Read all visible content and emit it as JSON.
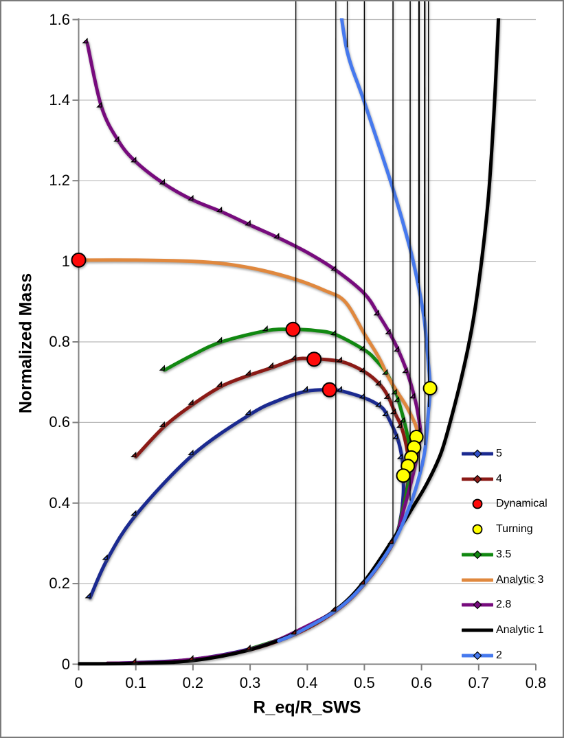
{
  "figure": {
    "background": "#FFFFFF",
    "border_color": "#7A7A7A"
  },
  "chart_data": {
    "type": "line",
    "title": "",
    "xlabel": "R_eq/R_SWS",
    "ylabel": "Normalized Mass",
    "xlim": [
      0,
      0.8
    ],
    "ylim": [
      0,
      1.6
    ],
    "xticks": [
      "0",
      "0.1",
      "0.2",
      "0.3",
      "0.4",
      "0.5",
      "0.6",
      "0.7",
      "0.8"
    ],
    "yticks": [
      "0",
      "0.2",
      "0.4",
      "0.6",
      "0.8",
      "1",
      "1.2",
      "1.4",
      "1.6"
    ],
    "grid": "horizontal",
    "legend_position": "inside-right",
    "colors": {
      "grid": "#B7B7B7",
      "axis": "#808080",
      "text": "#000000"
    },
    "series": [
      {
        "name": "5",
        "kind": "line",
        "color": "#1B2A90",
        "marker": "diamond",
        "marker_fill": "#3050C8",
        "marker_size": 12,
        "line_points": [
          [
            0.05,
            0.002
          ],
          [
            0.1,
            0.004
          ],
          [
            0.2,
            0.012
          ],
          [
            0.3,
            0.038
          ],
          [
            0.38,
            0.076
          ],
          [
            0.45,
            0.133
          ],
          [
            0.5,
            0.2
          ],
          [
            0.55,
            0.3
          ],
          [
            0.563,
            0.36
          ],
          [
            0.568,
            0.42
          ],
          [
            0.568,
            0.467
          ],
          [
            0.566,
            0.51
          ],
          [
            0.558,
            0.56
          ],
          [
            0.54,
            0.617
          ],
          [
            0.528,
            0.64
          ],
          [
            0.5,
            0.661
          ],
          [
            0.46,
            0.678
          ],
          [
            0.44,
            0.681
          ],
          [
            0.4,
            0.678
          ],
          [
            0.35,
            0.655
          ],
          [
            0.3,
            0.62
          ],
          [
            0.2,
            0.52
          ],
          [
            0.1,
            0.37
          ],
          [
            0.05,
            0.26
          ],
          [
            0.02,
            0.165
          ]
        ],
        "marker_points": [
          [
            0.38,
            0.076
          ],
          [
            0.45,
            0.133
          ],
          [
            0.5,
            0.2
          ],
          [
            0.55,
            0.3
          ],
          [
            0.568,
            0.467
          ],
          [
            0.566,
            0.51
          ],
          [
            0.558,
            0.56
          ],
          [
            0.54,
            0.617
          ],
          [
            0.528,
            0.64
          ],
          [
            0.5,
            0.661
          ],
          [
            0.46,
            0.678
          ],
          [
            0.4,
            0.678
          ],
          [
            0.3,
            0.62
          ],
          [
            0.2,
            0.52
          ],
          [
            0.1,
            0.37
          ],
          [
            0.05,
            0.26
          ],
          [
            0.02,
            0.165
          ]
        ]
      },
      {
        "name": "4",
        "kind": "line",
        "color": "#8B1A16",
        "marker": "diamond",
        "marker_fill": "#8B1A16",
        "marker_size": 12,
        "line_points": [
          [
            0.05,
            0.002
          ],
          [
            0.1,
            0.003
          ],
          [
            0.2,
            0.01
          ],
          [
            0.3,
            0.036
          ],
          [
            0.38,
            0.075
          ],
          [
            0.45,
            0.132
          ],
          [
            0.5,
            0.199
          ],
          [
            0.55,
            0.3
          ],
          [
            0.568,
            0.39
          ],
          [
            0.576,
            0.45
          ],
          [
            0.577,
            0.492
          ],
          [
            0.575,
            0.53
          ],
          [
            0.565,
            0.588
          ],
          [
            0.554,
            0.622
          ],
          [
            0.543,
            0.66
          ],
          [
            0.528,
            0.693
          ],
          [
            0.5,
            0.726
          ],
          [
            0.46,
            0.751
          ],
          [
            0.41,
            0.758
          ],
          [
            0.38,
            0.757
          ],
          [
            0.34,
            0.737
          ],
          [
            0.3,
            0.718
          ],
          [
            0.25,
            0.69
          ],
          [
            0.2,
            0.645
          ],
          [
            0.15,
            0.59
          ],
          [
            0.1,
            0.515
          ]
        ],
        "marker_points": [
          [
            0.1,
            0.003
          ],
          [
            0.2,
            0.01
          ],
          [
            0.3,
            0.036
          ],
          [
            0.38,
            0.075
          ],
          [
            0.45,
            0.132
          ],
          [
            0.5,
            0.199
          ],
          [
            0.55,
            0.3
          ],
          [
            0.577,
            0.492
          ],
          [
            0.565,
            0.588
          ],
          [
            0.554,
            0.622
          ],
          [
            0.543,
            0.66
          ],
          [
            0.528,
            0.693
          ],
          [
            0.5,
            0.726
          ],
          [
            0.46,
            0.751
          ],
          [
            0.38,
            0.757
          ],
          [
            0.34,
            0.737
          ],
          [
            0.3,
            0.718
          ],
          [
            0.25,
            0.69
          ],
          [
            0.2,
            0.645
          ],
          [
            0.15,
            0.59
          ],
          [
            0.1,
            0.515
          ]
        ]
      },
      {
        "name": "Dynamical",
        "kind": "scatter",
        "color": "#FF0A0A",
        "marker": "circle",
        "marker_fill": "#FF0A0A",
        "marker_size": 20,
        "points": [
          [
            0,
            1.003
          ],
          [
            0.375,
            0.831
          ],
          [
            0.412,
            0.757
          ],
          [
            0.439,
            0.681
          ]
        ]
      },
      {
        "name": "Turning",
        "kind": "scatter",
        "color": "#FFFF00",
        "marker": "circle",
        "marker_fill": "#FFFF00",
        "marker_size": 19,
        "points": [
          [
            0.615,
            0.685
          ],
          [
            0.591,
            0.564
          ],
          [
            0.587,
            0.538
          ],
          [
            0.582,
            0.513
          ],
          [
            0.576,
            0.492
          ],
          [
            0.568,
            0.468
          ]
        ]
      },
      {
        "name": "3.5",
        "kind": "line",
        "color": "#118811",
        "marker": "diamond",
        "marker_fill": "#118811",
        "marker_size": 12,
        "line_points": [
          [
            0.3,
            0.038
          ],
          [
            0.38,
            0.077
          ],
          [
            0.45,
            0.134
          ],
          [
            0.5,
            0.201
          ],
          [
            0.55,
            0.302
          ],
          [
            0.57,
            0.4
          ],
          [
            0.578,
            0.46
          ],
          [
            0.582,
            0.513
          ],
          [
            0.578,
            0.55
          ],
          [
            0.57,
            0.601
          ],
          [
            0.56,
            0.652
          ],
          [
            0.556,
            0.671
          ],
          [
            0.54,
            0.72
          ],
          [
            0.52,
            0.755
          ],
          [
            0.5,
            0.78
          ],
          [
            0.45,
            0.818
          ],
          [
            0.415,
            0.828
          ],
          [
            0.375,
            0.831
          ],
          [
            0.33,
            0.828
          ],
          [
            0.25,
            0.8
          ],
          [
            0.2,
            0.768
          ],
          [
            0.15,
            0.73
          ]
        ],
        "marker_points": [
          [
            0.582,
            0.513
          ],
          [
            0.57,
            0.601
          ],
          [
            0.56,
            0.652
          ],
          [
            0.556,
            0.671
          ],
          [
            0.54,
            0.72
          ],
          [
            0.5,
            0.78
          ],
          [
            0.45,
            0.818
          ],
          [
            0.33,
            0.828
          ],
          [
            0.25,
            0.8
          ],
          [
            0.15,
            0.73
          ]
        ]
      },
      {
        "name": "Analytic 3",
        "kind": "line",
        "color": "#E0883E",
        "marker": "none",
        "marker_fill": "",
        "marker_size": 0,
        "line_points": [
          [
            0,
            1.003
          ],
          [
            0.1,
            1.003
          ],
          [
            0.2,
            1.0
          ],
          [
            0.26,
            0.993
          ],
          [
            0.32,
            0.978
          ],
          [
            0.38,
            0.955
          ],
          [
            0.43,
            0.928
          ],
          [
            0.466,
            0.9
          ],
          [
            0.5,
            0.82
          ],
          [
            0.525,
            0.762
          ],
          [
            0.542,
            0.712
          ],
          [
            0.558,
            0.675
          ],
          [
            0.572,
            0.644
          ],
          [
            0.582,
            0.617
          ],
          [
            0.59,
            0.592
          ],
          [
            0.593,
            0.57
          ]
        ],
        "marker_points": []
      },
      {
        "name": "2.8",
        "kind": "line",
        "color": "#770B7D",
        "marker": "diamond",
        "marker_fill": "#770B7D",
        "marker_size": 12,
        "line_points": [
          [
            0.05,
            0.002
          ],
          [
            0.15,
            0.006
          ],
          [
            0.25,
            0.022
          ],
          [
            0.33,
            0.05
          ],
          [
            0.4,
            0.095
          ],
          [
            0.45,
            0.135
          ],
          [
            0.5,
            0.202
          ],
          [
            0.55,
            0.302
          ],
          [
            0.57,
            0.39
          ],
          [
            0.585,
            0.47
          ],
          [
            0.594,
            0.53
          ],
          [
            0.598,
            0.575
          ],
          [
            0.594,
            0.62
          ],
          [
            0.588,
            0.661
          ],
          [
            0.575,
            0.724
          ],
          [
            0.56,
            0.777
          ],
          [
            0.545,
            0.82
          ],
          [
            0.525,
            0.867
          ],
          [
            0.5,
            0.92
          ],
          [
            0.45,
            0.978
          ],
          [
            0.4,
            1.022
          ],
          [
            0.35,
            1.058
          ],
          [
            0.3,
            1.09
          ],
          [
            0.25,
            1.123
          ],
          [
            0.2,
            1.152
          ],
          [
            0.15,
            1.192
          ],
          [
            0.1,
            1.247
          ],
          [
            0.07,
            1.298
          ],
          [
            0.04,
            1.383
          ],
          [
            0.015,
            1.542
          ]
        ],
        "marker_points": [
          [
            0.598,
            0.575
          ],
          [
            0.588,
            0.661
          ],
          [
            0.575,
            0.724
          ],
          [
            0.56,
            0.777
          ],
          [
            0.545,
            0.82
          ],
          [
            0.525,
            0.867
          ],
          [
            0.45,
            0.978
          ],
          [
            0.35,
            1.058
          ],
          [
            0.3,
            1.09
          ],
          [
            0.25,
            1.123
          ],
          [
            0.2,
            1.152
          ],
          [
            0.15,
            1.192
          ],
          [
            0.1,
            1.247
          ],
          [
            0.07,
            1.298
          ],
          [
            0.04,
            1.383
          ],
          [
            0.015,
            1.542
          ]
        ]
      },
      {
        "name": "Analytic 1",
        "kind": "line",
        "color": "#000000",
        "marker": "none",
        "marker_fill": "",
        "marker_size": 0,
        "line_points": [
          [
            0,
            0.001
          ],
          [
            0.1,
            0.002
          ],
          [
            0.2,
            0.009
          ],
          [
            0.3,
            0.036
          ],
          [
            0.38,
            0.077
          ],
          [
            0.45,
            0.135
          ],
          [
            0.5,
            0.206
          ],
          [
            0.55,
            0.31
          ],
          [
            0.585,
            0.39
          ],
          [
            0.61,
            0.45
          ],
          [
            0.633,
            0.52
          ],
          [
            0.648,
            0.59
          ],
          [
            0.672,
            0.724
          ],
          [
            0.69,
            0.85
          ],
          [
            0.705,
            1.0
          ],
          [
            0.717,
            1.16
          ],
          [
            0.726,
            1.35
          ],
          [
            0.733,
            1.55
          ],
          [
            0.736,
            1.66
          ]
        ],
        "marker_points": []
      },
      {
        "name": "2",
        "kind": "line",
        "color": "#4679EE",
        "marker": "diamond",
        "marker_fill": "#4679EE",
        "marker_size": 13,
        "line_points": [
          [
            0.35,
            0.058
          ],
          [
            0.38,
            0.076
          ],
          [
            0.45,
            0.133
          ],
          [
            0.5,
            0.2
          ],
          [
            0.55,
            0.3
          ],
          [
            0.58,
            0.395
          ],
          [
            0.596,
            0.467
          ],
          [
            0.606,
            0.533
          ],
          [
            0.612,
            0.627
          ],
          [
            0.615,
            0.685
          ],
          [
            0.612,
            0.746
          ],
          [
            0.605,
            0.852
          ],
          [
            0.595,
            0.935
          ],
          [
            0.58,
            1.031
          ],
          [
            0.55,
            1.18
          ],
          [
            0.5,
            1.395
          ],
          [
            0.47,
            1.52
          ],
          [
            0.455,
            1.66
          ]
        ],
        "marker_points": [
          [
            0.38,
            0.076
          ],
          [
            0.45,
            0.133
          ],
          [
            0.5,
            0.2
          ],
          [
            0.55,
            0.3
          ],
          [
            0.58,
            0.395
          ],
          [
            0.596,
            0.467
          ],
          [
            0.606,
            0.533
          ],
          [
            0.612,
            0.627
          ],
          [
            0.612,
            0.746
          ],
          [
            0.605,
            0.852
          ],
          [
            0.595,
            0.935
          ],
          [
            0.58,
            1.031
          ],
          [
            0.55,
            1.18
          ],
          [
            0.5,
            1.395
          ],
          [
            0.47,
            1.52
          ]
        ]
      }
    ]
  }
}
